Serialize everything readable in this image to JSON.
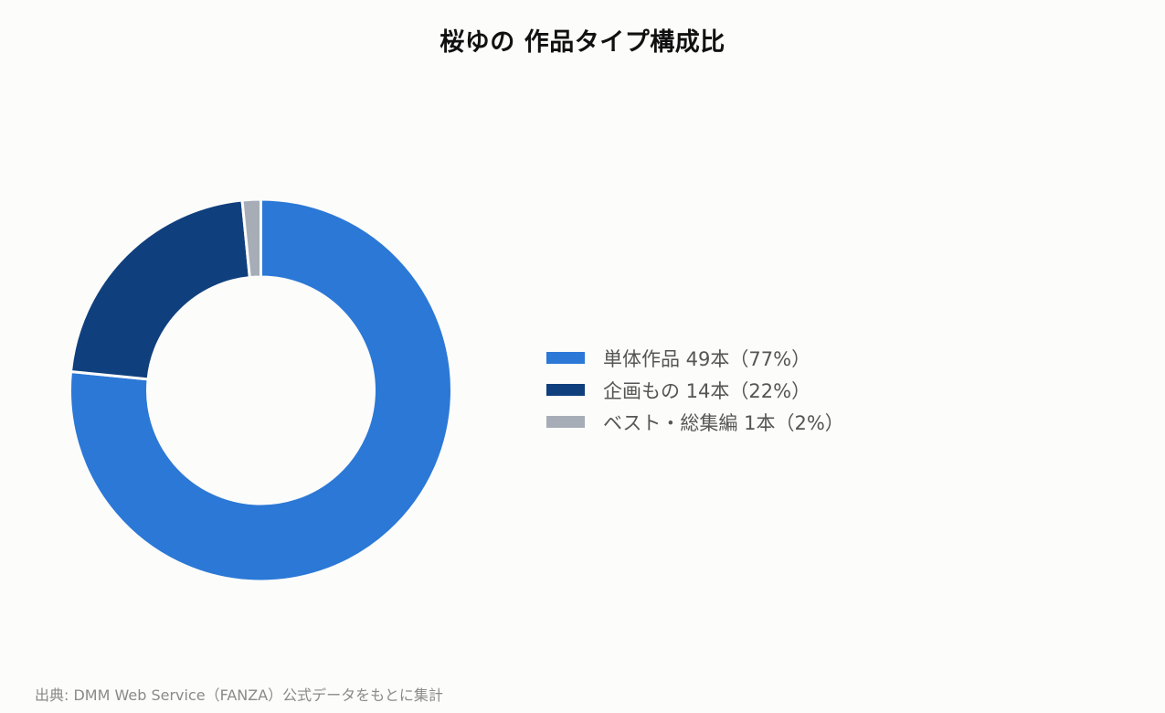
{
  "chart_data": {
    "type": "pie",
    "title": "桜ゆの 作品タイプ構成比",
    "categories": [
      "単体作品",
      "企画もの",
      "ベスト・総集編"
    ],
    "values": [
      49,
      14,
      1
    ],
    "unit": "本",
    "percent_labels": [
      "77%",
      "22%",
      "2%"
    ],
    "colors": [
      "#2b78d6",
      "#103f7d",
      "#a6adb6"
    ],
    "legend_labels": [
      "単体作品 49本（77%）",
      "企画もの 14本（22%）",
      "ベスト・総集編 1本（2%）"
    ],
    "legend_placement": "right",
    "donut": true
  },
  "footer": {
    "source": "出典: DMM Web Service（FANZA）公式データをもとに集計"
  }
}
